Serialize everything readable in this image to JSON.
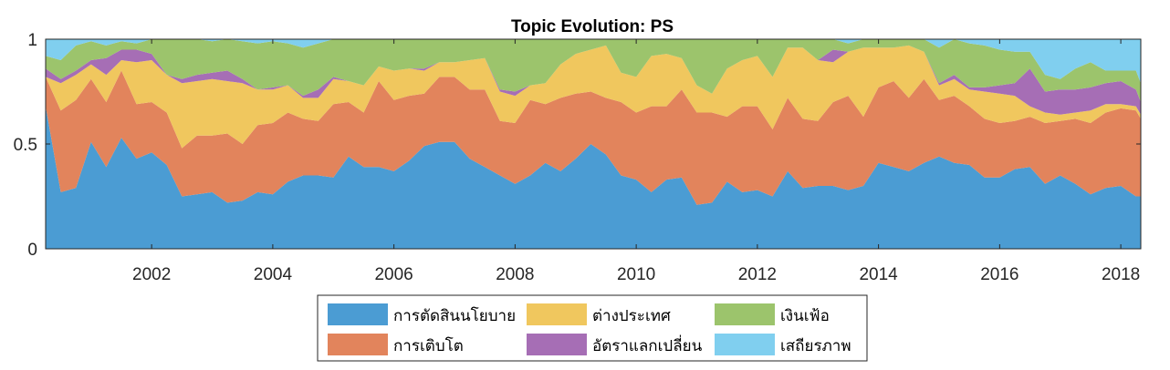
{
  "chart_data": {
    "type": "area",
    "stacked": true,
    "title": "Topic Evolution: PS",
    "xlabel": "",
    "ylabel": "",
    "xlim": [
      2000.25,
      2018.33
    ],
    "ylim": [
      0,
      1
    ],
    "x_ticks": [
      2002,
      2004,
      2006,
      2008,
      2010,
      2012,
      2014,
      2016,
      2018
    ],
    "y_ticks": [
      0,
      0.5,
      1
    ],
    "y_tick_labels": [
      "0",
      "0.5",
      "1"
    ],
    "grid": false,
    "legend_placement": "bottom-center",
    "x": [
      2000.25,
      2000.5,
      2000.75,
      2001.0,
      2001.25,
      2001.5,
      2001.75,
      2002.0,
      2002.25,
      2002.5,
      2002.75,
      2003.0,
      2003.25,
      2003.5,
      2003.75,
      2004.0,
      2004.25,
      2004.5,
      2004.75,
      2005.0,
      2005.25,
      2005.5,
      2005.75,
      2006.0,
      2006.25,
      2006.5,
      2006.75,
      2007.0,
      2007.25,
      2007.5,
      2007.75,
      2008.0,
      2008.25,
      2008.5,
      2008.75,
      2009.0,
      2009.25,
      2009.5,
      2009.75,
      2010.0,
      2010.25,
      2010.5,
      2010.75,
      2011.0,
      2011.25,
      2011.5,
      2011.75,
      2012.0,
      2012.25,
      2012.5,
      2012.75,
      2013.0,
      2013.25,
      2013.5,
      2013.75,
      2014.0,
      2014.25,
      2014.5,
      2014.75,
      2015.0,
      2015.25,
      2015.5,
      2015.75,
      2016.0,
      2016.25,
      2016.5,
      2016.75,
      2017.0,
      2017.25,
      2017.5,
      2017.75,
      2018.0,
      2018.25,
      2018.33
    ],
    "series": [
      {
        "name": "การตัดสินนโยบาย",
        "color": "#4b9cd3",
        "values": [
          0.68,
          0.27,
          0.29,
          0.51,
          0.39,
          0.53,
          0.43,
          0.46,
          0.4,
          0.25,
          0.26,
          0.27,
          0.22,
          0.23,
          0.27,
          0.26,
          0.32,
          0.35,
          0.35,
          0.34,
          0.44,
          0.39,
          0.39,
          0.37,
          0.42,
          0.49,
          0.51,
          0.51,
          0.43,
          0.39,
          0.35,
          0.31,
          0.35,
          0.41,
          0.37,
          0.43,
          0.5,
          0.45,
          0.35,
          0.33,
          0.27,
          0.33,
          0.34,
          0.21,
          0.22,
          0.32,
          0.27,
          0.28,
          0.25,
          0.37,
          0.29,
          0.3,
          0.3,
          0.28,
          0.3,
          0.41,
          0.39,
          0.37,
          0.41,
          0.44,
          0.41,
          0.4,
          0.34,
          0.34,
          0.38,
          0.39,
          0.31,
          0.35,
          0.31,
          0.26,
          0.29,
          0.3,
          0.25,
          0.25
        ]
      },
      {
        "name": "การเติบโต",
        "color": "#e2845c",
        "values": [
          0.14,
          0.39,
          0.42,
          0.3,
          0.31,
          0.32,
          0.26,
          0.24,
          0.25,
          0.23,
          0.28,
          0.27,
          0.33,
          0.27,
          0.32,
          0.34,
          0.33,
          0.27,
          0.26,
          0.35,
          0.26,
          0.26,
          0.41,
          0.34,
          0.31,
          0.25,
          0.31,
          0.31,
          0.33,
          0.37,
          0.26,
          0.29,
          0.36,
          0.28,
          0.35,
          0.31,
          0.25,
          0.27,
          0.35,
          0.32,
          0.41,
          0.35,
          0.42,
          0.44,
          0.43,
          0.31,
          0.41,
          0.4,
          0.32,
          0.35,
          0.33,
          0.31,
          0.4,
          0.45,
          0.33,
          0.36,
          0.41,
          0.35,
          0.4,
          0.27,
          0.32,
          0.28,
          0.28,
          0.26,
          0.23,
          0.24,
          0.29,
          0.26,
          0.31,
          0.34,
          0.36,
          0.37,
          0.41,
          0.37
        ]
      },
      {
        "name": "ต่างประเทศ",
        "color": "#f0c75e",
        "values": [
          0.0,
          0.13,
          0.12,
          0.07,
          0.13,
          0.05,
          0.2,
          0.2,
          0.18,
          0.31,
          0.26,
          0.27,
          0.25,
          0.29,
          0.17,
          0.16,
          0.13,
          0.1,
          0.11,
          0.12,
          0.1,
          0.13,
          0.07,
          0.14,
          0.13,
          0.11,
          0.07,
          0.07,
          0.14,
          0.15,
          0.14,
          0.13,
          0.07,
          0.1,
          0.16,
          0.19,
          0.2,
          0.25,
          0.14,
          0.17,
          0.24,
          0.25,
          0.15,
          0.13,
          0.09,
          0.23,
          0.22,
          0.24,
          0.25,
          0.24,
          0.34,
          0.29,
          0.19,
          0.21,
          0.33,
          0.19,
          0.16,
          0.25,
          0.13,
          0.07,
          0.08,
          0.08,
          0.13,
          0.14,
          0.12,
          0.05,
          0.05,
          0.03,
          0.03,
          0.06,
          0.04,
          0.02,
          0.02,
          0.02
        ]
      },
      {
        "name": "อัตราแลกเปลี่ยน",
        "color": "#a66eb5",
        "values": [
          0.04,
          0.02,
          0.02,
          0.02,
          0.08,
          0.05,
          0.06,
          0.03,
          0.0,
          0.02,
          0.03,
          0.03,
          0.05,
          0.02,
          0.0,
          0.01,
          0.0,
          0.01,
          0.04,
          0.01,
          0.0,
          0.0,
          0.0,
          0.0,
          0.0,
          0.01,
          0.0,
          0.0,
          0.0,
          0.0,
          0.01,
          0.02,
          0.0,
          0.0,
          0.0,
          0.0,
          0.0,
          0.0,
          0.0,
          0.0,
          0.0,
          0.0,
          0.0,
          0.0,
          0.0,
          0.0,
          0.0,
          0.0,
          0.0,
          0.0,
          0.0,
          0.0,
          0.06,
          0.0,
          0.0,
          0.0,
          0.0,
          0.0,
          0.0,
          0.01,
          0.02,
          0.01,
          0.02,
          0.04,
          0.06,
          0.18,
          0.1,
          0.12,
          0.11,
          0.11,
          0.1,
          0.11,
          0.08,
          0.06
        ]
      },
      {
        "name": "เงินเฟ้อ",
        "color": "#9cc46c",
        "values": [
          0.06,
          0.09,
          0.12,
          0.09,
          0.06,
          0.04,
          0.03,
          0.07,
          0.17,
          0.19,
          0.17,
          0.15,
          0.15,
          0.18,
          0.22,
          0.22,
          0.2,
          0.23,
          0.22,
          0.18,
          0.2,
          0.22,
          0.13,
          0.15,
          0.14,
          0.14,
          0.11,
          0.11,
          0.1,
          0.09,
          0.24,
          0.25,
          0.22,
          0.21,
          0.12,
          0.07,
          0.05,
          0.03,
          0.16,
          0.18,
          0.08,
          0.07,
          0.09,
          0.22,
          0.26,
          0.14,
          0.1,
          0.08,
          0.18,
          0.04,
          0.04,
          0.1,
          0.05,
          0.04,
          0.04,
          0.04,
          0.04,
          0.03,
          0.06,
          0.17,
          0.17,
          0.21,
          0.2,
          0.17,
          0.15,
          0.08,
          0.08,
          0.05,
          0.1,
          0.12,
          0.06,
          0.05,
          0.09,
          0.09
        ]
      },
      {
        "name": "เสถียรภาพ",
        "color": "#80cfef",
        "values": [
          0.08,
          0.1,
          0.03,
          0.01,
          0.03,
          0.01,
          0.02,
          0.0,
          0.0,
          0.0,
          0.0,
          0.01,
          0.0,
          0.01,
          0.02,
          0.01,
          0.02,
          0.04,
          0.02,
          0.0,
          0.0,
          0.0,
          0.0,
          0.0,
          0.0,
          0.0,
          0.0,
          0.0,
          0.0,
          0.0,
          0.0,
          0.0,
          0.0,
          0.0,
          0.0,
          0.0,
          0.0,
          0.0,
          0.0,
          0.0,
          0.0,
          0.0,
          0.0,
          0.0,
          0.0,
          0.0,
          0.0,
          0.0,
          0.0,
          0.0,
          0.0,
          0.0,
          0.0,
          0.02,
          0.0,
          0.0,
          0.0,
          0.0,
          0.0,
          0.04,
          0.0,
          0.02,
          0.03,
          0.05,
          0.06,
          0.06,
          0.17,
          0.19,
          0.14,
          0.11,
          0.15,
          0.15,
          0.15,
          0.21
        ]
      }
    ]
  }
}
